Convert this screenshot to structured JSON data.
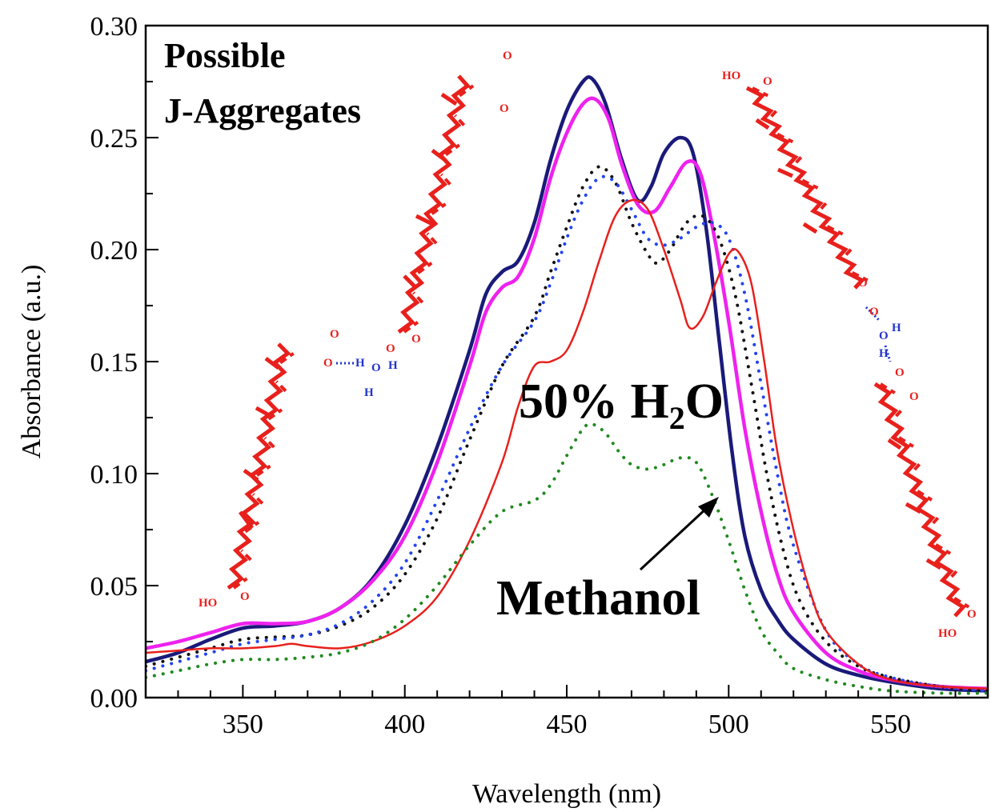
{
  "chart_data": {
    "type": "line",
    "xlabel": "Wavelength (nm)",
    "ylabel": "Absorbance (a.u.)",
    "xlim": [
      320,
      580
    ],
    "ylim": [
      0.0,
      0.3
    ],
    "x_ticks": [
      350,
      400,
      450,
      500,
      550
    ],
    "x_tick_labels": [
      "350",
      "400",
      "450",
      "500",
      "550"
    ],
    "y_ticks": [
      0.0,
      0.05,
      0.1,
      0.15,
      0.2,
      0.25,
      0.3
    ],
    "y_tick_labels": [
      "0.00",
      "0.05",
      "0.10",
      "0.15",
      "0.20",
      "0.25",
      "0.30"
    ],
    "grid": false,
    "legend": "none",
    "series": [
      {
        "color": "#1a1a7a",
        "style": "solid",
        "width": 4.5,
        "points": [
          [
            320,
            0.016
          ],
          [
            330,
            0.02
          ],
          [
            340,
            0.026
          ],
          [
            350,
            0.031
          ],
          [
            360,
            0.032
          ],
          [
            370,
            0.034
          ],
          [
            380,
            0.04
          ],
          [
            390,
            0.053
          ],
          [
            400,
            0.077
          ],
          [
            410,
            0.112
          ],
          [
            420,
            0.155
          ],
          [
            425,
            0.18
          ],
          [
            430,
            0.19
          ],
          [
            435,
            0.195
          ],
          [
            440,
            0.212
          ],
          [
            445,
            0.24
          ],
          [
            450,
            0.262
          ],
          [
            455,
            0.275
          ],
          [
            458,
            0.276
          ],
          [
            462,
            0.265
          ],
          [
            467,
            0.24
          ],
          [
            472,
            0.222
          ],
          [
            476,
            0.228
          ],
          [
            480,
            0.243
          ],
          [
            485,
            0.25
          ],
          [
            489,
            0.243
          ],
          [
            493,
            0.21
          ],
          [
            497,
            0.16
          ],
          [
            501,
            0.11
          ],
          [
            505,
            0.072
          ],
          [
            510,
            0.048
          ],
          [
            515,
            0.035
          ],
          [
            520,
            0.026
          ],
          [
            530,
            0.015
          ],
          [
            540,
            0.01
          ],
          [
            550,
            0.007
          ],
          [
            565,
            0.004
          ],
          [
            580,
            0.003
          ]
        ]
      },
      {
        "color": "#ee22ee",
        "style": "solid",
        "width": 4.5,
        "points": [
          [
            320,
            0.022
          ],
          [
            330,
            0.025
          ],
          [
            340,
            0.029
          ],
          [
            350,
            0.033
          ],
          [
            360,
            0.033
          ],
          [
            370,
            0.034
          ],
          [
            380,
            0.04
          ],
          [
            390,
            0.052
          ],
          [
            400,
            0.072
          ],
          [
            410,
            0.105
          ],
          [
            420,
            0.148
          ],
          [
            425,
            0.172
          ],
          [
            430,
            0.183
          ],
          [
            435,
            0.188
          ],
          [
            440,
            0.205
          ],
          [
            445,
            0.232
          ],
          [
            450,
            0.252
          ],
          [
            455,
            0.265
          ],
          [
            459,
            0.267
          ],
          [
            463,
            0.258
          ],
          [
            467,
            0.238
          ],
          [
            472,
            0.22
          ],
          [
            477,
            0.217
          ],
          [
            482,
            0.228
          ],
          [
            487,
            0.239
          ],
          [
            491,
            0.235
          ],
          [
            495,
            0.21
          ],
          [
            500,
            0.168
          ],
          [
            505,
            0.12
          ],
          [
            510,
            0.083
          ],
          [
            515,
            0.055
          ],
          [
            520,
            0.038
          ],
          [
            530,
            0.02
          ],
          [
            540,
            0.012
          ],
          [
            550,
            0.008
          ],
          [
            565,
            0.005
          ],
          [
            580,
            0.004
          ]
        ]
      },
      {
        "color": "#111111",
        "style": "dotted",
        "width": 4,
        "points": [
          [
            320,
            0.014
          ],
          [
            330,
            0.018
          ],
          [
            340,
            0.022
          ],
          [
            350,
            0.026
          ],
          [
            360,
            0.027
          ],
          [
            370,
            0.028
          ],
          [
            380,
            0.032
          ],
          [
            390,
            0.04
          ],
          [
            400,
            0.055
          ],
          [
            410,
            0.08
          ],
          [
            420,
            0.115
          ],
          [
            430,
            0.148
          ],
          [
            440,
            0.17
          ],
          [
            445,
            0.19
          ],
          [
            450,
            0.21
          ],
          [
            455,
            0.228
          ],
          [
            460,
            0.237
          ],
          [
            465,
            0.23
          ],
          [
            470,
            0.212
          ],
          [
            475,
            0.198
          ],
          [
            478,
            0.194
          ],
          [
            482,
            0.2
          ],
          [
            487,
            0.212
          ],
          [
            492,
            0.215
          ],
          [
            497,
            0.205
          ],
          [
            502,
            0.18
          ],
          [
            507,
            0.14
          ],
          [
            512,
            0.098
          ],
          [
            517,
            0.065
          ],
          [
            522,
            0.043
          ],
          [
            530,
            0.025
          ],
          [
            540,
            0.014
          ],
          [
            550,
            0.009
          ],
          [
            565,
            0.005
          ],
          [
            580,
            0.003
          ]
        ]
      },
      {
        "color": "#2244ee",
        "style": "dotted",
        "width": 4,
        "points": [
          [
            320,
            0.012
          ],
          [
            330,
            0.016
          ],
          [
            340,
            0.02
          ],
          [
            350,
            0.024
          ],
          [
            360,
            0.026
          ],
          [
            370,
            0.028
          ],
          [
            380,
            0.033
          ],
          [
            390,
            0.043
          ],
          [
            400,
            0.06
          ],
          [
            410,
            0.088
          ],
          [
            420,
            0.12
          ],
          [
            430,
            0.148
          ],
          [
            440,
            0.168
          ],
          [
            445,
            0.185
          ],
          [
            450,
            0.205
          ],
          [
            455,
            0.222
          ],
          [
            460,
            0.232
          ],
          [
            465,
            0.23
          ],
          [
            470,
            0.218
          ],
          [
            475,
            0.205
          ],
          [
            480,
            0.202
          ],
          [
            485,
            0.205
          ],
          [
            490,
            0.21
          ],
          [
            495,
            0.212
          ],
          [
            500,
            0.205
          ],
          [
            505,
            0.18
          ],
          [
            510,
            0.14
          ],
          [
            515,
            0.1
          ],
          [
            520,
            0.068
          ],
          [
            530,
            0.03
          ],
          [
            540,
            0.015
          ],
          [
            550,
            0.009
          ],
          [
            565,
            0.005
          ],
          [
            580,
            0.003
          ]
        ]
      },
      {
        "color": "#e8201c",
        "style": "solid",
        "width": 2.5,
        "points": [
          [
            320,
            0.02
          ],
          [
            330,
            0.021
          ],
          [
            340,
            0.022
          ],
          [
            350,
            0.022
          ],
          [
            360,
            0.023
          ],
          [
            365,
            0.024
          ],
          [
            370,
            0.023
          ],
          [
            380,
            0.022
          ],
          [
            390,
            0.025
          ],
          [
            400,
            0.032
          ],
          [
            410,
            0.045
          ],
          [
            420,
            0.07
          ],
          [
            430,
            0.105
          ],
          [
            435,
            0.13
          ],
          [
            440,
            0.148
          ],
          [
            445,
            0.15
          ],
          [
            450,
            0.155
          ],
          [
            455,
            0.172
          ],
          [
            460,
            0.195
          ],
          [
            465,
            0.215
          ],
          [
            470,
            0.222
          ],
          [
            475,
            0.218
          ],
          [
            480,
            0.2
          ],
          [
            485,
            0.178
          ],
          [
            488,
            0.165
          ],
          [
            492,
            0.17
          ],
          [
            496,
            0.185
          ],
          [
            500,
            0.198
          ],
          [
            503,
            0.199
          ],
          [
            507,
            0.185
          ],
          [
            511,
            0.15
          ],
          [
            515,
            0.11
          ],
          [
            520,
            0.075
          ],
          [
            525,
            0.048
          ],
          [
            530,
            0.03
          ],
          [
            540,
            0.015
          ],
          [
            550,
            0.008
          ],
          [
            565,
            0.005
          ],
          [
            580,
            0.004
          ]
        ]
      },
      {
        "color": "#1f8a1f",
        "style": "dotted",
        "width": 4,
        "points": [
          [
            320,
            0.009
          ],
          [
            330,
            0.012
          ],
          [
            340,
            0.015
          ],
          [
            350,
            0.017
          ],
          [
            360,
            0.017
          ],
          [
            370,
            0.018
          ],
          [
            380,
            0.02
          ],
          [
            390,
            0.025
          ],
          [
            400,
            0.035
          ],
          [
            410,
            0.05
          ],
          [
            420,
            0.068
          ],
          [
            430,
            0.083
          ],
          [
            440,
            0.088
          ],
          [
            445,
            0.095
          ],
          [
            450,
            0.108
          ],
          [
            455,
            0.12
          ],
          [
            458,
            0.122
          ],
          [
            462,
            0.118
          ],
          [
            466,
            0.11
          ],
          [
            470,
            0.104
          ],
          [
            475,
            0.102
          ],
          [
            480,
            0.104
          ],
          [
            485,
            0.107
          ],
          [
            490,
            0.105
          ],
          [
            495,
            0.09
          ],
          [
            500,
            0.07
          ],
          [
            505,
            0.048
          ],
          [
            510,
            0.03
          ],
          [
            515,
            0.02
          ],
          [
            520,
            0.013
          ],
          [
            530,
            0.008
          ],
          [
            540,
            0.005
          ],
          [
            550,
            0.003
          ],
          [
            565,
            0.002
          ],
          [
            580,
            0.002
          ]
        ]
      }
    ],
    "annotations": {
      "top_left_line1": "Possible",
      "top_left_line2": "J-Aggregates",
      "water_main": "50% H",
      "water_sub": "2",
      "water_tail": "O",
      "methanol": "Methanol"
    },
    "molecule_labels": {
      "ho": "HO",
      "o": "O",
      "h": "H"
    },
    "colors": {
      "molecule": "#e8201c",
      "water_bond": "#2233cc",
      "axis": "#000000"
    }
  }
}
